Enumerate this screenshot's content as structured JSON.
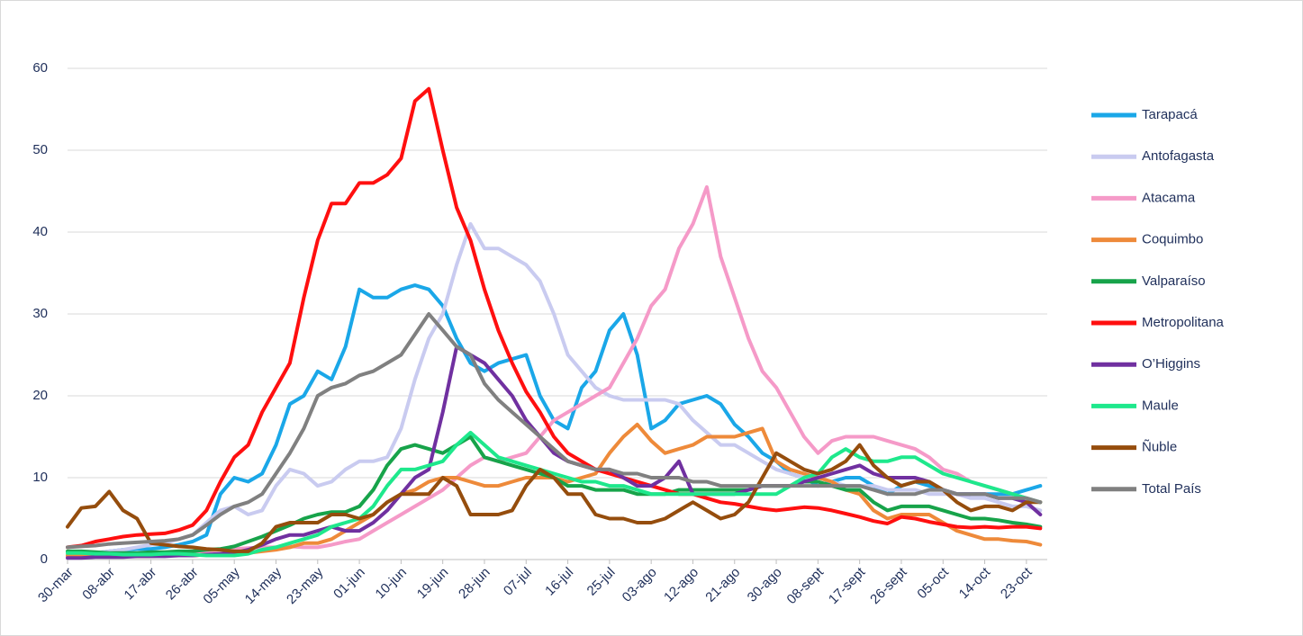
{
  "chart_data": {
    "type": "line",
    "categories": [
      "30-mar",
      null,
      null,
      "08-abr",
      null,
      null,
      "17-abr",
      null,
      null,
      "26-abr",
      null,
      null,
      "05-may",
      null,
      null,
      "14-may",
      null,
      null,
      "23-may",
      null,
      null,
      "01-jun",
      null,
      null,
      "10-jun",
      null,
      null,
      "19-jun",
      null,
      null,
      "28-jun",
      null,
      null,
      "07-jul",
      null,
      null,
      "16-jul",
      null,
      null,
      "25-jul",
      null,
      null,
      "03-ago",
      null,
      null,
      "12-ago",
      null,
      null,
      "21-ago",
      null,
      null,
      "30-ago",
      null,
      null,
      "08-sept",
      null,
      null,
      "17-sept",
      null,
      null,
      "26-sept",
      null,
      null,
      "05-oct",
      null,
      null,
      "14-oct",
      null,
      null,
      "23-oct",
      null
    ],
    "ylim": [
      0,
      60
    ],
    "yticks": [
      0,
      10,
      20,
      30,
      40,
      50,
      60
    ],
    "grid": true,
    "legend": "right",
    "series": [
      {
        "name": "Tarapacá",
        "color": "#1aa7e8",
        "values": [
          0.5,
          0.6,
          0.8,
          1,
          1.2,
          1.3,
          1.3,
          1.5,
          1.8,
          2.2,
          3,
          8,
          10,
          9.5,
          10.5,
          14,
          19,
          20,
          23,
          22,
          26,
          33,
          32,
          32,
          33,
          33.5,
          33,
          31,
          27,
          24,
          23,
          24,
          24.5,
          25,
          20,
          17,
          16,
          21,
          23,
          28,
          30,
          25,
          16,
          17,
          19,
          19.5,
          20,
          19,
          16.5,
          15,
          13,
          12,
          10.5,
          10,
          9,
          9.5,
          10,
          10,
          9,
          8,
          9,
          9.5,
          9,
          8.5,
          8,
          8,
          8,
          8,
          8,
          8.5,
          9
        ]
      },
      {
        "name": "Antofagasta",
        "color": "#c9cbf0",
        "values": [
          0.5,
          0.6,
          0.8,
          1,
          1.2,
          1.5,
          1.8,
          2,
          2.5,
          3,
          4.5,
          6,
          6.5,
          5.5,
          6,
          9,
          11,
          10.5,
          9,
          9.5,
          11,
          12,
          12,
          12.5,
          16,
          22,
          27,
          30,
          36,
          41,
          38,
          38,
          37,
          36,
          34,
          30,
          25,
          23,
          21,
          20,
          19.5,
          19.5,
          19.5,
          19.5,
          19,
          17,
          15.5,
          14,
          14,
          13,
          12,
          11,
          10.5,
          10,
          10,
          9.5,
          9,
          9,
          9,
          8.5,
          8.5,
          8.5,
          8,
          8,
          8,
          7.5,
          7.5,
          7,
          6.5,
          6.5,
          6
        ]
      },
      {
        "name": "Atacama",
        "color": "#f59ac8",
        "values": [
          0.3,
          0.4,
          0.5,
          0.5,
          0.6,
          0.7,
          0.8,
          0.8,
          0.9,
          1,
          1,
          1.2,
          1.3,
          1.4,
          1.5,
          1.5,
          1.6,
          1.5,
          1.5,
          1.8,
          2.2,
          2.5,
          3.5,
          4.5,
          5.5,
          6.5,
          7.5,
          8.5,
          10,
          11.5,
          12.5,
          12,
          12.5,
          13,
          15,
          17,
          18,
          19,
          20,
          21,
          24,
          27,
          31,
          33,
          38,
          41,
          45.5,
          37,
          32,
          27,
          23,
          21,
          18,
          15,
          13,
          14.5,
          15,
          15,
          15,
          14.5,
          14,
          13.5,
          12.5,
          11,
          10.5,
          9.5,
          9,
          8.5,
          8,
          7.5,
          7
        ]
      },
      {
        "name": "Coquimbo",
        "color": "#ee8a3a",
        "values": [
          0.5,
          0.5,
          0.4,
          0.4,
          0.4,
          0.4,
          0.4,
          0.5,
          0.5,
          0.5,
          0.6,
          0.6,
          0.7,
          0.8,
          1,
          1.2,
          1.5,
          2,
          2,
          2.5,
          3.5,
          4.5,
          5.5,
          7,
          8,
          8.5,
          9.5,
          10,
          10,
          9.5,
          9,
          9,
          9.5,
          10,
          10,
          10,
          9.5,
          10,
          10.5,
          13,
          15,
          16.5,
          14.5,
          13,
          13.5,
          14,
          15,
          15,
          15,
          15.5,
          16,
          12,
          11,
          10.5,
          10,
          9.5,
          8.5,
          8,
          6,
          5,
          5.5,
          5.5,
          5.5,
          4.5,
          3.5,
          3,
          2.5,
          2.5,
          2.3,
          2.2,
          1.8
        ]
      },
      {
        "name": "Valparaíso",
        "color": "#17a34a",
        "values": [
          1,
          1,
          0.9,
          0.8,
          0.8,
          0.8,
          0.9,
          0.9,
          1,
          1,
          1.2,
          1.3,
          1.6,
          2.2,
          2.8,
          3.5,
          4.2,
          5,
          5.5,
          5.8,
          5.8,
          6.5,
          8.5,
          11.5,
          13.5,
          14,
          13.5,
          13,
          14,
          15,
          12.5,
          12,
          11.5,
          11,
          10.5,
          10,
          9,
          9,
          8.5,
          8.5,
          8.5,
          8,
          8,
          8,
          8.5,
          8.5,
          8.5,
          8.5,
          8.5,
          8.5,
          9,
          9,
          9,
          9.5,
          9.5,
          9,
          8.5,
          8.5,
          7,
          6,
          6.5,
          6.5,
          6.5,
          6,
          5.5,
          5,
          5,
          4.8,
          4.5,
          4.3,
          4
        ]
      },
      {
        "name": "Metropolitana",
        "color": "#ff0f0f",
        "values": [
          1.5,
          1.7,
          2.2,
          2.5,
          2.8,
          3.0,
          3.1,
          3.2,
          3.6,
          4.2,
          6,
          9.5,
          12.5,
          14,
          18,
          21,
          24,
          32,
          39,
          43.5,
          43.5,
          46,
          46,
          47,
          49,
          56,
          57.5,
          50,
          43,
          39,
          33,
          28,
          24,
          20.5,
          18,
          15,
          13,
          12,
          11,
          10.5,
          10,
          9.5,
          9,
          8.5,
          8,
          8,
          7.5,
          7,
          6.8,
          6.5,
          6.2,
          6,
          6.2,
          6.4,
          6.3,
          6,
          5.6,
          5.2,
          4.7,
          4.4,
          5.2,
          5,
          4.6,
          4.3,
          4,
          3.9,
          4,
          3.9,
          4,
          4,
          3.8
        ]
      },
      {
        "name": "O’Higgins",
        "color": "#7030a0",
        "values": [
          0.2,
          0.2,
          0.3,
          0.3,
          0.3,
          0.4,
          0.4,
          0.4,
          0.5,
          0.5,
          0.6,
          0.7,
          0.8,
          1.2,
          1.8,
          2.5,
          3,
          3,
          3.5,
          4,
          3.5,
          3.5,
          4.5,
          6,
          8,
          10,
          11,
          18,
          26,
          25,
          24,
          22,
          20,
          17,
          15,
          13,
          12,
          11.5,
          11,
          11,
          10,
          9,
          9,
          10,
          12,
          8,
          8,
          8,
          8,
          8.5,
          9,
          9,
          9,
          9.5,
          10,
          10.5,
          11,
          11.5,
          10.5,
          10,
          10,
          10,
          9.5,
          8.5,
          8,
          8,
          8,
          7.5,
          7.5,
          7,
          5.5
        ]
      },
      {
        "name": "Maule",
        "color": "#1ee88c",
        "values": [
          0.8,
          0.8,
          0.7,
          0.7,
          0.6,
          0.6,
          0.6,
          0.7,
          0.7,
          0.6,
          0.5,
          0.5,
          0.5,
          0.7,
          1.2,
          1.5,
          2,
          2.5,
          3,
          4,
          4.5,
          5,
          6.5,
          9,
          11,
          11,
          11.5,
          12,
          14,
          15.5,
          14,
          12.5,
          12,
          11.5,
          11,
          10.5,
          10,
          9.5,
          9.5,
          9,
          9,
          8.5,
          8,
          8,
          8,
          8,
          8,
          8,
          8,
          8,
          8,
          8,
          9,
          10,
          10.5,
          12.5,
          13.5,
          12.5,
          12,
          12,
          12.5,
          12.5,
          11.5,
          10.5,
          10,
          9.5,
          9,
          8.5,
          8,
          7.5,
          7
        ]
      },
      {
        "name": "Ñuble",
        "color": "#954d0d",
        "values": [
          4,
          6.3,
          6.5,
          8.3,
          6,
          5,
          2,
          1.8,
          1.6,
          1.5,
          1.3,
          1.2,
          1,
          1,
          2,
          4,
          4.5,
          4.5,
          4.5,
          5.5,
          5.5,
          5,
          5.5,
          7,
          8,
          8,
          8,
          10,
          9,
          5.5,
          5.5,
          5.5,
          6,
          9,
          11,
          10,
          8,
          8,
          5.5,
          5,
          5,
          4.5,
          4.5,
          5,
          6,
          7,
          6,
          5,
          5.5,
          7,
          10,
          13,
          12,
          11,
          10.5,
          11,
          12,
          14,
          11.5,
          10,
          9,
          9.5,
          9.5,
          8.5,
          7,
          6,
          6.5,
          6.5,
          6,
          7,
          7
        ]
      },
      {
        "name": "Total País",
        "color": "#808080",
        "values": [
          1.5,
          1.6,
          1.7,
          1.9,
          2,
          2.1,
          2.2,
          2.3,
          2.5,
          3,
          4.2,
          5.5,
          6.5,
          7,
          8,
          10.5,
          13,
          16,
          20,
          21,
          21.5,
          22.5,
          23,
          24,
          25,
          27.5,
          30,
          28,
          26,
          25,
          21.5,
          19.5,
          18,
          16.5,
          15,
          13.5,
          12,
          11.5,
          11,
          11,
          10.5,
          10.5,
          10,
          10,
          10,
          9.5,
          9.5,
          9,
          9,
          9,
          9,
          9,
          9,
          9,
          9,
          9,
          9,
          9,
          8.5,
          8,
          8,
          8,
          8.5,
          8.5,
          8,
          8,
          8,
          7.5,
          7.5,
          7.5,
          7
        ]
      }
    ]
  }
}
